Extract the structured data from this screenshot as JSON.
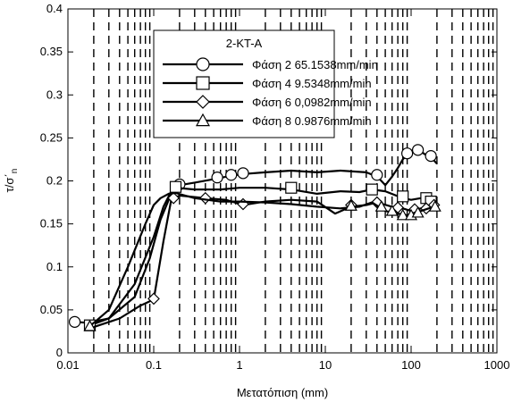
{
  "chart_data": {
    "type": "line",
    "title": "2-KT-A",
    "xlabel": "Μετατόπιση (mm)",
    "ylabel": "τ/σ΄n",
    "ylabel_main": "τ/σ΄",
    "ylabel_sub": "n",
    "xscale": "log",
    "xlim": [
      0.01,
      1000
    ],
    "ylim": [
      0,
      0.4
    ],
    "xticks": [
      0.01,
      0.1,
      1,
      10,
      100,
      1000
    ],
    "xtick_labels": [
      "0.01",
      "0.1",
      "1",
      "10",
      "100",
      "1000"
    ],
    "yticks": [
      0,
      0.05,
      0.1,
      0.15,
      0.2,
      0.25,
      0.3,
      0.35,
      0.4
    ],
    "ytick_labels": [
      "0",
      "0.05",
      "0.1",
      "0.15",
      "0.2",
      "0.25",
      "0.3",
      "0.35",
      "0.4"
    ],
    "grid": "vertical dashed at log minor ticks",
    "legend_position": "top-right",
    "series": [
      {
        "name": "Φάση 2   65.1538mm/min",
        "marker": "circle",
        "x": [
          0.012,
          0.017,
          0.03,
          0.06,
          0.09,
          0.12,
          0.16,
          0.2,
          0.3,
          0.5,
          0.8,
          1.1,
          2,
          4,
          8,
          15,
          30,
          40,
          45,
          50,
          60,
          70,
          80,
          90,
          100,
          120,
          140,
          160,
          180,
          200
        ],
        "y": [
          0.036,
          0.035,
          0.04,
          0.065,
          0.11,
          0.155,
          0.185,
          0.195,
          0.198,
          0.202,
          0.206,
          0.208,
          0.21,
          0.212,
          0.21,
          0.212,
          0.21,
          0.205,
          0.2,
          0.195,
          0.205,
          0.215,
          0.225,
          0.23,
          0.235,
          0.236,
          0.232,
          0.228,
          0.225,
          0.22
        ],
        "markers_x": [
          0.012,
          0.2,
          0.55,
          0.8,
          1.1,
          40,
          90,
          120,
          170
        ],
        "markers_y": [
          0.036,
          0.196,
          0.204,
          0.207,
          0.209,
          0.207,
          0.232,
          0.236,
          0.229
        ]
      },
      {
        "name": "Φάση 4  9.5348mm/min",
        "marker": "square",
        "x": [
          0.018,
          0.03,
          0.06,
          0.1,
          0.13,
          0.16,
          0.18,
          0.3,
          0.6,
          1,
          2,
          4,
          8,
          15,
          25,
          35,
          50,
          80,
          100,
          130,
          160,
          190
        ],
        "y": [
          0.032,
          0.04,
          0.08,
          0.135,
          0.17,
          0.188,
          0.192,
          0.19,
          0.19,
          0.192,
          0.192,
          0.19,
          0.185,
          0.188,
          0.187,
          0.19,
          0.188,
          0.18,
          0.178,
          0.18,
          0.182,
          0.18
        ],
        "markers_x": [
          0.018,
          0.18,
          4,
          35,
          80,
          150,
          170
        ],
        "markers_y": [
          0.032,
          0.193,
          0.192,
          0.19,
          0.182,
          0.18,
          0.176
        ]
      },
      {
        "name": "Φάση 6  0,0982mm/min",
        "marker": "diamond",
        "x": [
          0.02,
          0.04,
          0.07,
          0.1,
          0.13,
          0.16,
          0.2,
          0.4,
          0.7,
          1.1,
          2,
          4,
          8,
          13,
          20,
          30,
          40,
          60,
          80,
          100,
          130,
          160,
          190
        ],
        "y": [
          0.03,
          0.04,
          0.055,
          0.062,
          0.13,
          0.178,
          0.183,
          0.18,
          0.178,
          0.172,
          0.176,
          0.178,
          0.176,
          0.162,
          0.17,
          0.172,
          0.175,
          0.17,
          0.168,
          0.165,
          0.168,
          0.17,
          0.172
        ],
        "markers_x": [
          0.1,
          0.17,
          0.4,
          1.1,
          20,
          40,
          70,
          110,
          150,
          185
        ],
        "markers_y": [
          0.063,
          0.18,
          0.18,
          0.173,
          0.172,
          0.175,
          0.169,
          0.167,
          0.168,
          0.172
        ]
      },
      {
        "name": "Φάση 8  0.9876mm/min",
        "marker": "triangle",
        "x": [
          0.018,
          0.03,
          0.05,
          0.08,
          0.1,
          0.12,
          0.15,
          0.18,
          0.3,
          0.6,
          1,
          2,
          4,
          8,
          15,
          25,
          35,
          50,
          70,
          90,
          110,
          130,
          160,
          190
        ],
        "y": [
          0.031,
          0.05,
          0.1,
          0.15,
          0.172,
          0.18,
          0.185,
          0.186,
          0.18,
          0.176,
          0.176,
          0.175,
          0.173,
          0.17,
          0.168,
          0.17,
          0.175,
          0.165,
          0.162,
          0.16,
          0.163,
          0.165,
          0.168,
          0.17
        ],
        "markers_x": [
          0.018,
          20,
          45,
          60,
          80,
          100,
          120,
          190
        ],
        "markers_y": [
          0.031,
          0.171,
          0.17,
          0.165,
          0.16,
          0.16,
          0.163,
          0.17
        ]
      }
    ]
  }
}
